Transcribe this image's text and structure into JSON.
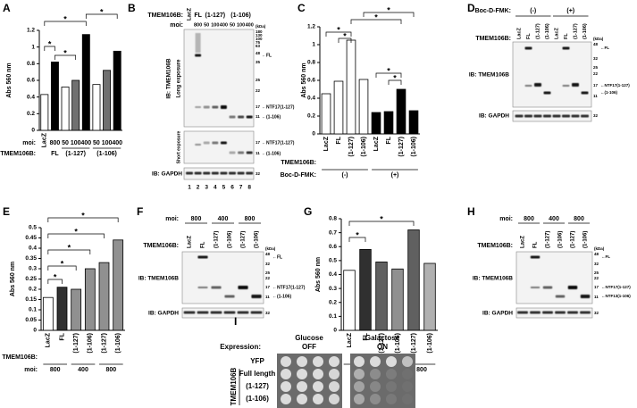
{
  "chart_data": [
    {
      "type": "bar",
      "panel": "A",
      "ylabel": "Abs 560 nm",
      "ylim": [
        0,
        1.2
      ],
      "yticks": [
        0,
        0.2,
        0.4,
        0.6,
        0.8,
        1,
        1.2
      ],
      "categories": [
        "LacZ",
        "800",
        "50",
        "100",
        "400",
        "50",
        "100",
        "400"
      ],
      "values": [
        0.43,
        0.82,
        0.52,
        0.6,
        1.15,
        0.55,
        0.72,
        0.95
      ],
      "colors": [
        "#ffffff",
        "#000000",
        "#ffffff",
        "#707070",
        "#000000",
        "#ffffff",
        "#707070",
        "#000000"
      ],
      "row_labels": [
        "moi:",
        "TMEM106B:"
      ],
      "groups": [
        "FL",
        "(1-127)",
        "(1-106)"
      ],
      "significance": [
        "*",
        "*",
        "*",
        "*"
      ]
    },
    {
      "type": "bar",
      "panel": "C",
      "ylabel": "Abs 560 nm",
      "ylim": [
        0,
        1.2
      ],
      "yticks": [
        0,
        0.2,
        0.4,
        0.6,
        0.8,
        1,
        1.2
      ],
      "categories": [
        "LacZ",
        "FL",
        "(1-127)",
        "(1-106)",
        "LacZ",
        "FL",
        "(1-127)",
        "(1-106)"
      ],
      "values": [
        0.45,
        0.59,
        1.05,
        0.61,
        0.24,
        0.25,
        0.5,
        0.26
      ],
      "colors": [
        "#ffffff",
        "#ffffff",
        "#ffffff",
        "#ffffff",
        "#000000",
        "#000000",
        "#000000",
        "#000000"
      ],
      "row_labels": [
        "TMEM106B:",
        "Boc-D-FMK:"
      ],
      "groups": [
        "(-)",
        "(+)"
      ],
      "significance": [
        "*",
        "*",
        "*",
        "*",
        "*",
        "*"
      ]
    },
    {
      "type": "bar",
      "panel": "E",
      "ylabel": "Abs 560 nm",
      "ylim": [
        0,
        0.5
      ],
      "yticks": [
        0,
        0.05,
        0.1,
        0.15,
        0.2,
        0.25,
        0.3,
        0.35,
        0.4,
        0.45,
        0.5
      ],
      "categories": [
        "LacZ",
        "FL",
        "(1-127)",
        "(1-106)",
        "(1-127)",
        "(1-106)"
      ],
      "values": [
        0.16,
        0.21,
        0.2,
        0.3,
        0.33,
        0.44
      ],
      "colors": [
        "#ffffff",
        "#303030",
        "#909090",
        "#909090",
        "#909090",
        "#909090"
      ],
      "row_labels": [
        "TMEM106B:",
        "moi:"
      ],
      "groups": [
        "800",
        "400",
        "800"
      ],
      "significance": [
        "*",
        "*",
        "*",
        "*",
        "*"
      ]
    },
    {
      "type": "bar",
      "panel": "G",
      "ylabel": "Abs 560 nm",
      "ylim": [
        0,
        0.8
      ],
      "yticks": [
        0,
        0.1,
        0.2,
        0.3,
        0.4,
        0.5,
        0.6,
        0.7,
        0.8
      ],
      "categories": [
        "LacZ",
        "FL",
        "(1-127)",
        "(1-106)",
        "(1-127)",
        "(1-106)"
      ],
      "values": [
        0.43,
        0.58,
        0.49,
        0.44,
        0.72,
        0.48
      ],
      "colors": [
        "#ffffff",
        "#303030",
        "#606060",
        "#909090",
        "#606060",
        "#b0b0b0"
      ],
      "row_labels": [
        "TMEM106B:",
        "moi:"
      ],
      "groups": [
        "800",
        "400",
        "800"
      ],
      "significance": [
        "*",
        "*"
      ]
    }
  ],
  "blots": [
    {
      "panel": "B",
      "header_label": "TMEM106B:",
      "lanes": [
        "LacZ",
        "FL",
        "(1-127)",
        "(1-106)"
      ],
      "moi_label": "moi:",
      "moi": [
        "800",
        "50",
        "100",
        "400",
        "50",
        "100",
        "400"
      ],
      "kda_label": "(kDa)",
      "kda": [
        "180",
        "130",
        "100",
        "75",
        "63",
        "48",
        "35",
        "25",
        "22",
        "17",
        "11"
      ],
      "ib": "IB: TMEM106B",
      "exposures": [
        "Long exposure",
        "Short exposure"
      ],
      "gapdh": "IB: GAPDH",
      "gapdh_kda": "32",
      "lane_numbers": [
        "1",
        "2",
        "3",
        "4",
        "5",
        "6",
        "7",
        "8"
      ],
      "arrows": [
        "←FL",
        "←NTF17(1-127)",
        "←(1-106)"
      ],
      "short_kda": [
        "17",
        "11"
      ],
      "short_arrows": [
        "←NTF17(1-127)",
        "←(1-106)"
      ]
    },
    {
      "panel": "D",
      "treat_label": "Boc-D-FMK:",
      "treat": [
        "(-)",
        "(+)"
      ],
      "header_label": "TMEM106B:",
      "lanes": [
        "LacZ",
        "FL",
        "(1-127)",
        "(1-106)",
        "LacZ",
        "FL",
        "(1-127)",
        "(1-106)"
      ],
      "kda_label": "(kDa)",
      "kda": [
        "48",
        "32",
        "25",
        "22",
        "17",
        "11"
      ],
      "ib": "IB: TMEM106B",
      "gapdh": "IB: GAPDH",
      "gapdh_kda": "32",
      "arrows": [
        "←FL",
        "←NTF17(1-127)",
        "←(1-106)"
      ]
    },
    {
      "panel": "F",
      "moi_label": "moi:",
      "moi": [
        "800",
        "400",
        "800"
      ],
      "header_label": "TMEM106B:",
      "lanes": [
        "LacZ",
        "FL",
        "(1-127)",
        "(1-106)",
        "(1-127)",
        "(1-106)"
      ],
      "kda_label": "(kDa)",
      "kda": [
        "48",
        "32",
        "25",
        "22",
        "17",
        "11"
      ],
      "ib": "IB: TMEM106B",
      "gapdh": "IB: GAPDH",
      "gapdh_kda": "32",
      "arrows": [
        "←FL",
        "←NTF17(1-127)",
        "←(1-106)"
      ]
    },
    {
      "panel": "H",
      "moi_label": "moi:",
      "moi": [
        "800",
        "400",
        "800"
      ],
      "header_label": "TMEM106B:",
      "lanes": [
        "LacZ",
        "FL",
        "(1-127)",
        "(1-106)",
        "(1-127)",
        "(1-106)"
      ],
      "kda_label": "(kDa)",
      "kda": [
        "48",
        "32",
        "25",
        "22",
        "17",
        "11"
      ],
      "ib": "IB: TMEM106B",
      "gapdh": "IB: GAPDH",
      "gapdh_kda": "32",
      "arrows": [
        "←FL",
        "←NTF17(1-127)",
        "←NTF13(1-106)"
      ]
    }
  ],
  "yeast": {
    "panel": "I",
    "expression_label": "Expression:",
    "conditions": [
      {
        "name": "Glucose",
        "state": "OFF"
      },
      {
        "name": "Galactose",
        "state": "ON"
      }
    ],
    "group_label": "TMEM106B",
    "rows": [
      "YFP",
      "Full length",
      "(1-127)",
      "(1-106)"
    ]
  }
}
